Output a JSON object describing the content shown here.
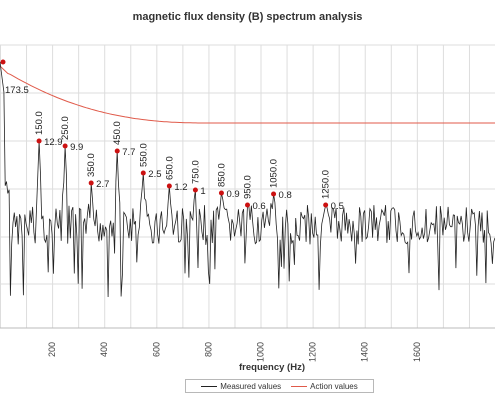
{
  "chart_data": {
    "type": "line",
    "title": "magnetic flux density (B) spectrum analysis",
    "xlabel": "frequency (Hz)",
    "ylabel": "",
    "xlim": [
      0,
      1900
    ],
    "x_ticks": [
      200,
      400,
      600,
      800,
      1000,
      1200,
      1400,
      1600
    ],
    "grid": true,
    "legend_position": "bottom",
    "series": [
      {
        "name": "Measured values",
        "color": "#222222",
        "peaks": [
          {
            "x": 0,
            "label": "173.5"
          },
          {
            "x": 150,
            "freq_label": "150.0",
            "label": "12.9"
          },
          {
            "x": 250,
            "freq_label": "250.0",
            "label": "9.9"
          },
          {
            "x": 350,
            "freq_label": "350.0",
            "label": "2.7"
          },
          {
            "x": 450,
            "freq_label": "450.0",
            "label": "7.7"
          },
          {
            "x": 550,
            "freq_label": "550.0",
            "label": "2.5"
          },
          {
            "x": 650,
            "freq_label": "650.0",
            "label": "1.2"
          },
          {
            "x": 750,
            "freq_label": "750.0",
            "label": "1"
          },
          {
            "x": 850,
            "freq_label": "850.0",
            "label": "0.9"
          },
          {
            "x": 950,
            "freq_label": "950.0",
            "label": "0.6"
          },
          {
            "x": 1050,
            "freq_label": "1050.0",
            "label": "0.8"
          },
          {
            "x": 1250,
            "freq_label": "1250.0",
            "label": "0.5"
          }
        ]
      },
      {
        "name": "Action values",
        "color": "#e05a4a"
      }
    ]
  },
  "peak_marker_color": "#cc1111",
  "grid_color": "#dddddd"
}
